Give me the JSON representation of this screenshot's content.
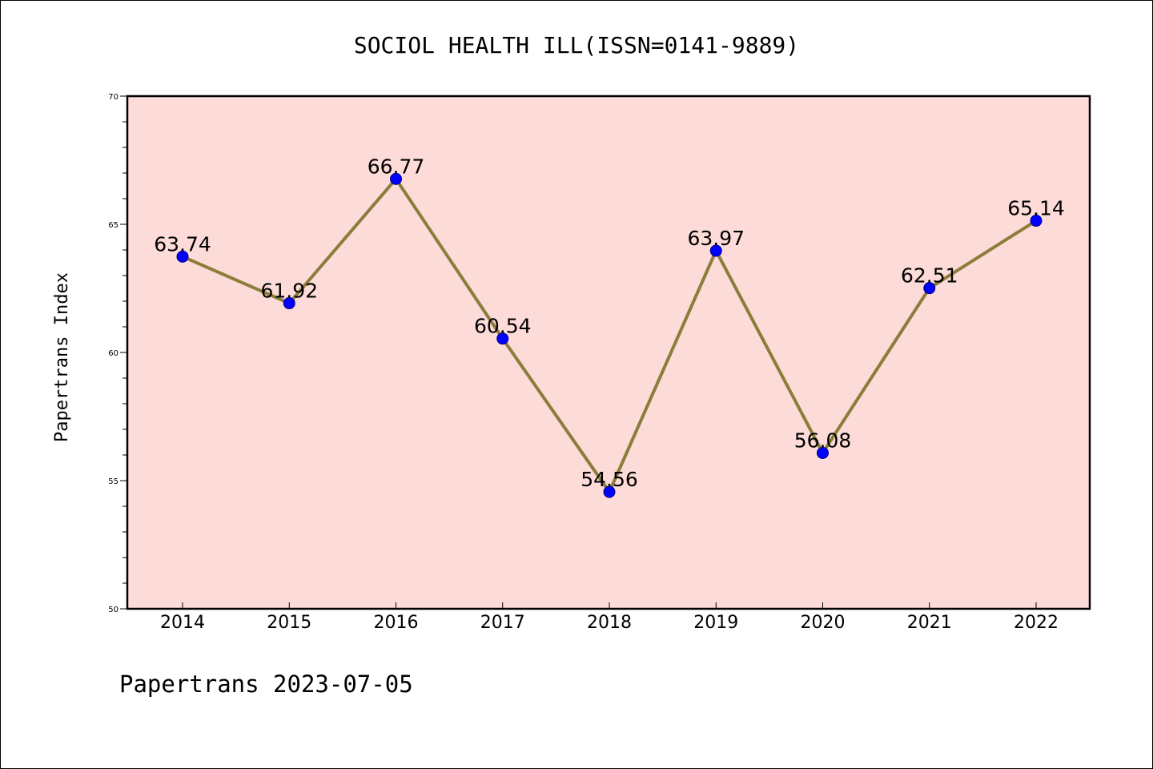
{
  "title": "SOCIOL HEALTH ILL(ISSN=0141-9889)",
  "footer": "Papertrans 2023-07-05",
  "chart_data": {
    "type": "line",
    "title": "SOCIOL HEALTH ILL(ISSN=0141-9889)",
    "xlabel": "",
    "ylabel": "Papertrans Index",
    "categories": [
      "2014",
      "2015",
      "2016",
      "2017",
      "2018",
      "2019",
      "2020",
      "2021",
      "2022"
    ],
    "series": [
      {
        "values": [
          63.74,
          61.92,
          66.77,
          60.54,
          54.56,
          63.97,
          56.08,
          62.51,
          65.14
        ],
        "labels": [
          "63.74",
          "61.92",
          "66.77",
          "60.54",
          "54.56",
          "63.97",
          "56.08",
          "62.51",
          "65.14"
        ],
        "line_color": "#8b7d3a",
        "marker_color": "#0000ff"
      }
    ],
    "ylim": [
      50,
      70
    ],
    "yticks": [
      "50",
      "55",
      "60",
      "65",
      "70"
    ],
    "plot_background": "#fddbd8",
    "grid": false,
    "legend": "none"
  }
}
